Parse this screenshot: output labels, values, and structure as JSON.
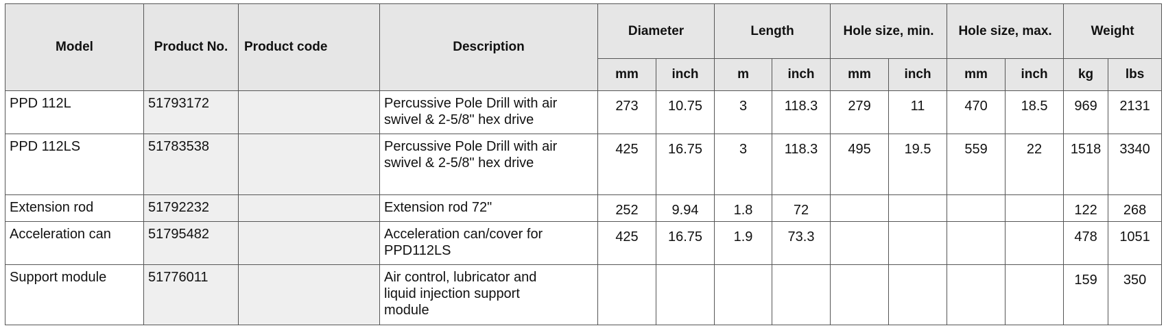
{
  "header": {
    "main": [
      "Model",
      "Product No.",
      "Product code",
      "Description"
    ],
    "groups": [
      "Diameter",
      "Length",
      "Hole size, min.",
      "Hole size, max.",
      "Weight"
    ],
    "units": [
      "mm",
      "inch",
      "m",
      "inch",
      "mm",
      "inch",
      "mm",
      "inch",
      "kg",
      "lbs"
    ]
  },
  "rows": [
    {
      "model": "PPD 112L",
      "product_no": "51793172",
      "description": [
        "Percussive Pole Drill with air",
        "swivel & 2-5/8\" hex drive"
      ],
      "values": [
        "273",
        "10.75",
        "3",
        "118.3",
        "279",
        "11",
        "470",
        "18.5",
        "969",
        "2131"
      ]
    },
    {
      "model": "PPD 112LS",
      "product_no": "51783538",
      "description": [
        "Percussive Pole Drill with air",
        "swivel & 2-5/8\" hex drive"
      ],
      "values": [
        "425",
        "16.75",
        "3",
        "118.3",
        "495",
        "19.5",
        "559",
        "22",
        "1518",
        "3340"
      ]
    },
    {
      "model": "Extension rod",
      "product_no": "51792232",
      "description": [
        "Extension rod 72\""
      ],
      "values": [
        "252",
        "9.94",
        "1.8",
        "72",
        null,
        null,
        null,
        null,
        "122",
        "268"
      ]
    },
    {
      "model": "Acceleration can",
      "product_no": "51795482",
      "description": [
        "Acceleration can/cover for",
        "PPD112LS"
      ],
      "values": [
        "425",
        "16.75",
        "1.9",
        "73.3",
        null,
        null,
        null,
        null,
        "478",
        "1051"
      ]
    },
    {
      "model": "Support module",
      "product_no": "51776011",
      "description": [
        "Air control, lubricator and",
        "liquid injection support",
        "module"
      ],
      "values": [
        null,
        null,
        null,
        null,
        null,
        null,
        null,
        null,
        "159",
        "350"
      ]
    }
  ]
}
